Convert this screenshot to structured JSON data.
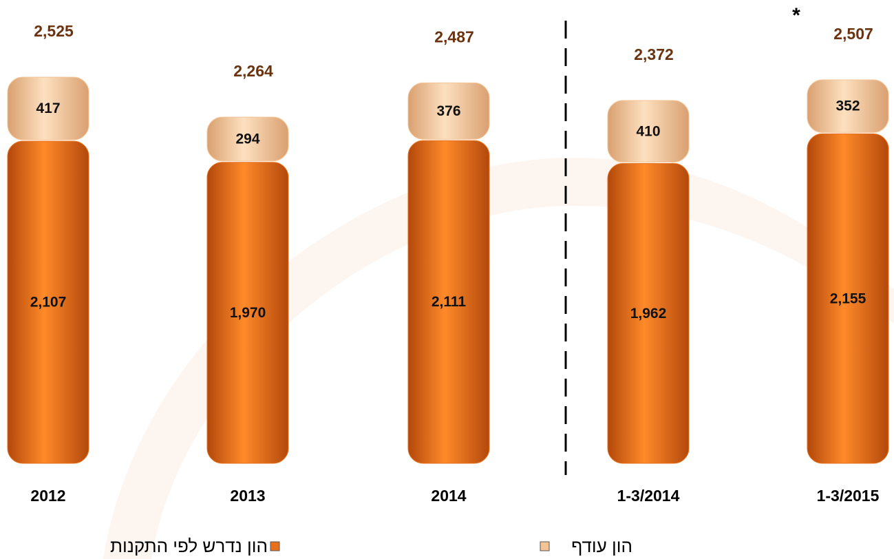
{
  "chart_data": {
    "type": "stacked_bar",
    "categories": [
      "2012",
      "2013",
      "2014",
      "1-3/2014",
      "1-3/2015"
    ],
    "series": [
      {
        "name": "הון נדרש לפי התקנות",
        "color": "#e8701a",
        "values": [
          2107,
          1970,
          2111,
          1962,
          2155
        ],
        "value_labels": [
          "2,107",
          "1,970",
          "2,111",
          "1,962",
          "2,155"
        ]
      },
      {
        "name": "הון עודף",
        "color": "#f5c496",
        "values": [
          417,
          294,
          376,
          410,
          352
        ],
        "value_labels": [
          "417",
          "294",
          "376",
          "410",
          "352"
        ]
      }
    ],
    "totals": [
      "2,525",
      "2,264",
      "2,487",
      "2,372",
      "2,507"
    ],
    "annotation": "*",
    "ylim": [
      0,
      3000
    ]
  }
}
